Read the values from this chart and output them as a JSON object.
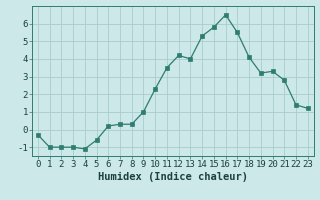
{
  "x": [
    0,
    1,
    2,
    3,
    4,
    5,
    6,
    7,
    8,
    9,
    10,
    11,
    12,
    13,
    14,
    15,
    16,
    17,
    18,
    19,
    20,
    21,
    22,
    23
  ],
  "y": [
    -0.3,
    -1.0,
    -1.0,
    -1.0,
    -1.1,
    -0.6,
    0.2,
    0.3,
    0.3,
    1.0,
    2.3,
    3.5,
    4.2,
    4.0,
    5.3,
    5.8,
    6.5,
    5.5,
    4.1,
    3.2,
    3.3,
    2.8,
    1.4,
    1.2
  ],
  "title": "",
  "xlabel": "Humidex (Indice chaleur)",
  "ylabel": "",
  "xlim": [
    -0.5,
    23.5
  ],
  "ylim": [
    -1.5,
    7.0
  ],
  "yticks": [
    -1,
    0,
    1,
    2,
    3,
    4,
    5,
    6
  ],
  "xticks": [
    0,
    1,
    2,
    3,
    4,
    5,
    6,
    7,
    8,
    9,
    10,
    11,
    12,
    13,
    14,
    15,
    16,
    17,
    18,
    19,
    20,
    21,
    22,
    23
  ],
  "line_color": "#2e7d6e",
  "marker_color": "#2e7d6e",
  "bg_color": "#cce8e8",
  "grid_color": "#aacccc",
  "tick_label_fontsize": 6.5,
  "xlabel_fontsize": 7.5
}
